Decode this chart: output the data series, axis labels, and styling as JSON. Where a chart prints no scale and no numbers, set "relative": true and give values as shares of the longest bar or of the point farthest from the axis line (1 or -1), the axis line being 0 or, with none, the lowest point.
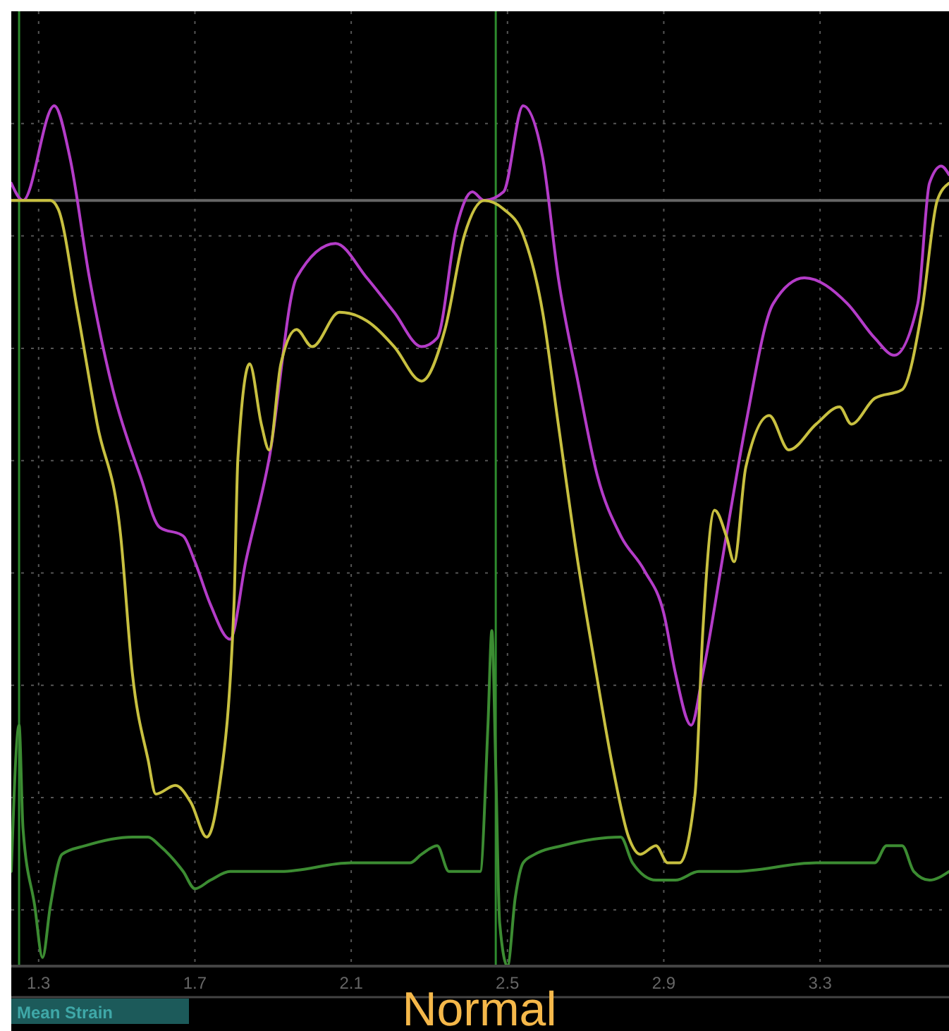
{
  "chart_data": {
    "type": "line",
    "title": "Normal",
    "annotations": [
      "Mean Strain"
    ],
    "relative": true,
    "grid": true,
    "xlim": [
      1.23,
      3.63
    ],
    "xticks": [
      1.3,
      1.7,
      2.1,
      2.5,
      2.9,
      3.3
    ],
    "ref_lines": [
      {
        "axis": "x",
        "value": 1.25,
        "color": "#2e8b2e"
      },
      {
        "axis": "x",
        "value": 2.47,
        "color": "#2e8b2e"
      },
      {
        "axis": "y",
        "value": 0.89,
        "color": "#666666"
      }
    ],
    "series": [
      {
        "color": "#b43cc8",
        "x": [
          1.23,
          1.26,
          1.34,
          1.38,
          1.43,
          1.49,
          1.56,
          1.61,
          1.67,
          1.7,
          1.74,
          1.79,
          1.83,
          1.89,
          1.96,
          2.06,
          2.14,
          2.21,
          2.28,
          2.32,
          2.37,
          2.41,
          2.44,
          2.49,
          2.54,
          2.59,
          2.63,
          2.68,
          2.73,
          2.79,
          2.85,
          2.9,
          2.93,
          2.97,
          3.0,
          3.06,
          3.11,
          3.18,
          3.26,
          3.37,
          3.44,
          3.49,
          3.55,
          3.58,
          3.61,
          3.63
        ],
        "values": [
          0.91,
          0.89,
          1,
          0.94,
          0.8,
          0.67,
          0.57,
          0.51,
          0.5,
          0.47,
          0.42,
          0.38,
          0.47,
          0.59,
          0.8,
          0.84,
          0.8,
          0.76,
          0.72,
          0.73,
          0.86,
          0.9,
          0.89,
          0.9,
          1,
          0.94,
          0.8,
          0.68,
          0.57,
          0.5,
          0.46,
          0.41,
          0.34,
          0.28,
          0.34,
          0.5,
          0.63,
          0.77,
          0.8,
          0.77,
          0.73,
          0.71,
          0.77,
          0.91,
          0.93,
          0.92
        ]
      },
      {
        "color": "#c8c040",
        "x": [
          1.23,
          1.33,
          1.35,
          1.4,
          1.45,
          1.51,
          1.54,
          1.58,
          1.6,
          1.65,
          1.69,
          1.73,
          1.76,
          1.8,
          1.81,
          1.84,
          1.87,
          1.89,
          1.92,
          1.96,
          2.0,
          2.07,
          2.14,
          2.21,
          2.28,
          2.34,
          2.39,
          2.44,
          2.49,
          2.54,
          2.59,
          2.63,
          2.68,
          2.72,
          2.77,
          2.81,
          2.84,
          2.88,
          2.91,
          2.94,
          2.98,
          3.0,
          3.03,
          3.06,
          3.08,
          3.11,
          3.17,
          3.22,
          3.29,
          3.35,
          3.38,
          3.44,
          3.51,
          3.56,
          3.6,
          3.63
        ],
        "values": [
          0.89,
          0.89,
          0.88,
          0.76,
          0.63,
          0.5,
          0.34,
          0.24,
          0.2,
          0.21,
          0.19,
          0.15,
          0.2,
          0.42,
          0.59,
          0.7,
          0.63,
          0.6,
          0.7,
          0.74,
          0.72,
          0.76,
          0.75,
          0.72,
          0.68,
          0.74,
          0.85,
          0.89,
          0.88,
          0.85,
          0.76,
          0.63,
          0.47,
          0.36,
          0.23,
          0.15,
          0.13,
          0.14,
          0.12,
          0.12,
          0.2,
          0.39,
          0.53,
          0.5,
          0.47,
          0.58,
          0.64,
          0.6,
          0.63,
          0.65,
          0.63,
          0.66,
          0.67,
          0.76,
          0.89,
          0.91
        ]
      },
      {
        "color": "#3c8c32",
        "x": [
          1.23,
          1.25,
          1.26,
          1.29,
          1.31,
          1.33,
          1.36,
          1.42,
          1.54,
          1.58,
          1.61,
          1.67,
          1.7,
          1.74,
          1.79,
          1.92,
          2.1,
          2.25,
          2.28,
          2.32,
          2.35,
          2.37,
          2.43,
          2.45,
          2.46,
          2.47,
          2.48,
          2.5,
          2.52,
          2.54,
          2.57,
          2.64,
          2.79,
          2.82,
          2.88,
          2.93,
          2.99,
          3.08,
          3.29,
          3.44,
          3.47,
          3.51,
          3.54,
          3.58,
          3.63
        ],
        "values": [
          0.11,
          0.28,
          0.16,
          0.07,
          0.01,
          0.07,
          0.13,
          0.14,
          0.15,
          0.15,
          0.14,
          0.11,
          0.09,
          0.1,
          0.11,
          0.11,
          0.12,
          0.12,
          0.13,
          0.14,
          0.11,
          0.11,
          0.11,
          0.28,
          0.39,
          0.23,
          0.05,
          0,
          0.08,
          0.12,
          0.13,
          0.14,
          0.15,
          0.12,
          0.1,
          0.1,
          0.11,
          0.11,
          0.12,
          0.12,
          0.14,
          0.14,
          0.11,
          0.1,
          0.11
        ]
      }
    ]
  }
}
